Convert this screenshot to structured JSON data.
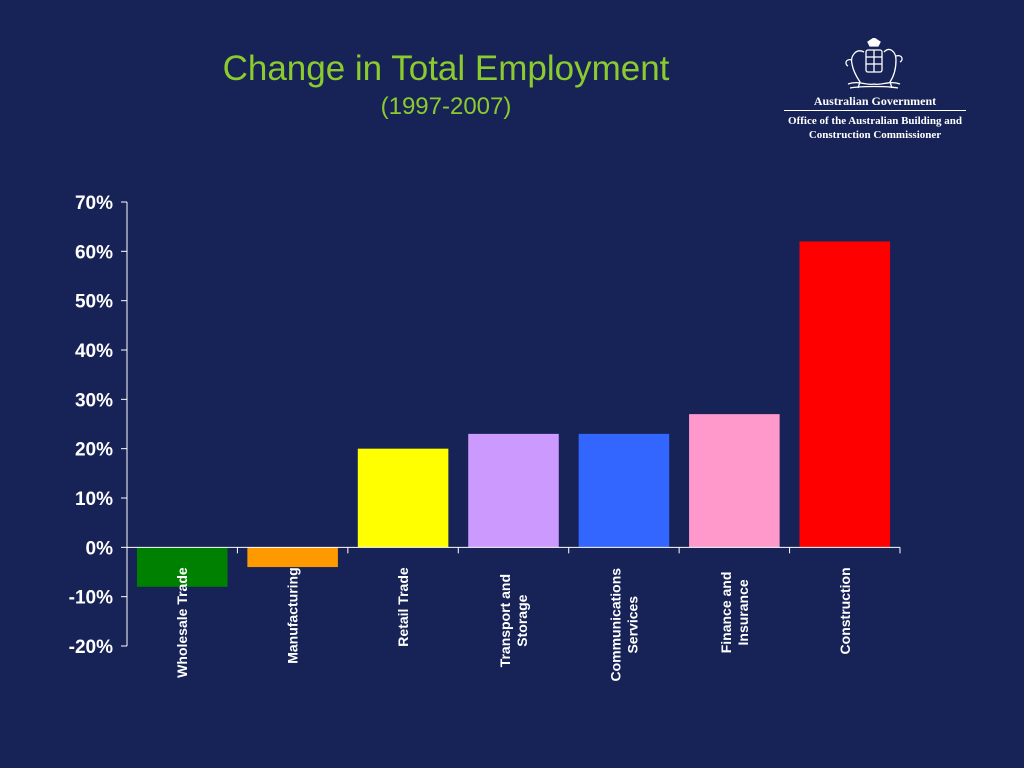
{
  "slide": {
    "title": "Change in Total Employment",
    "subtitle": "(1997-2007)"
  },
  "logo": {
    "government": "Australian Government",
    "office_line1": "Office of the Australian Building and",
    "office_line2": "Construction Commissioner",
    "icon": "coat-of-arms-icon"
  },
  "colors": {
    "background": "#172356",
    "title": "#8ccb2e",
    "axis": "#ffffff"
  },
  "chart_data": {
    "type": "bar",
    "title": "Change in Total Employment",
    "subtitle": "(1997-2007)",
    "xlabel": "",
    "ylabel": "",
    "ylim": [
      -20,
      70
    ],
    "yticks": [
      70,
      60,
      50,
      40,
      30,
      20,
      10,
      0,
      -10,
      -20
    ],
    "ytick_labels": [
      "70%",
      "60%",
      "50%",
      "40%",
      "30%",
      "20%",
      "10%",
      "0%",
      "-10%",
      "-20%"
    ],
    "categories": [
      [
        "Wholesale Trade"
      ],
      [
        "Manufacturing"
      ],
      [
        "Retail Trade"
      ],
      [
        "Transport and",
        "Storage"
      ],
      [
        "Communications",
        "Services"
      ],
      [
        "Finance and",
        "Insurance"
      ],
      [
        "Construction"
      ]
    ],
    "values": [
      -8,
      -4,
      20,
      23,
      23,
      27,
      62
    ],
    "bar_colors": [
      "#008000",
      "#ff9900",
      "#ffff00",
      "#cc99ff",
      "#3366ff",
      "#ff99cc",
      "#ff0000"
    ],
    "grid": false,
    "legend": "none"
  }
}
